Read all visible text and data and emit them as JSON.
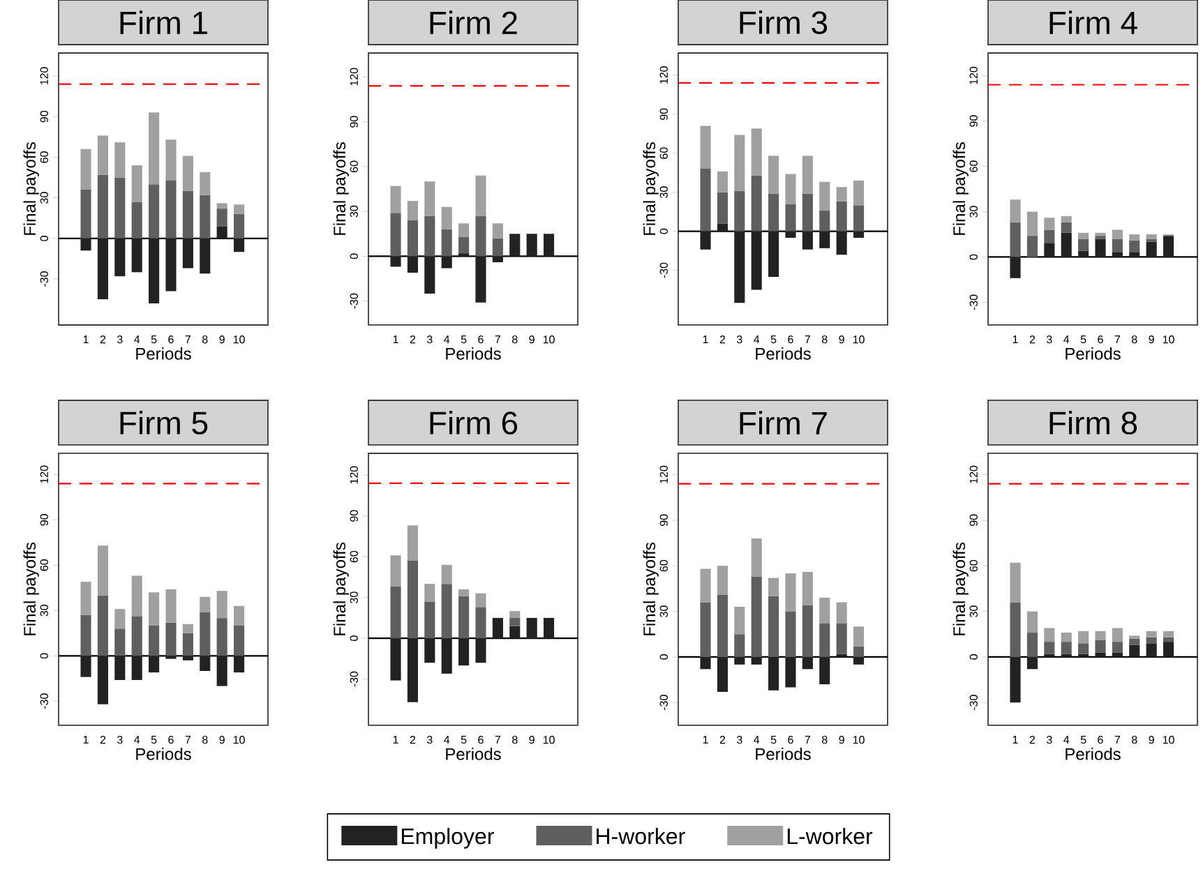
{
  "chart_data": [
    {
      "type": "bar",
      "title": "Firm 1",
      "xlabel": "Periods",
      "ylabel": "Final payoffs",
      "stacked": true,
      "legend": "bottom",
      "categories": [
        "1",
        "2",
        "3",
        "4",
        "5",
        "6",
        "7",
        "8",
        "9",
        "10"
      ],
      "ylim": [
        -64,
        137
      ],
      "yticks": [
        -30,
        0,
        30,
        60,
        90,
        120
      ],
      "ref_lines": [
        {
          "axis": "y",
          "value": 114,
          "color": "#ff0000",
          "line_style": "dashed"
        },
        {
          "axis": "y",
          "value": 0,
          "color": "#000000",
          "line_style": "solid"
        }
      ],
      "series": [
        {
          "name": "Employer",
          "color": "#222222",
          "values": [
            -9,
            -45,
            -28,
            -25,
            -48,
            -39,
            -22,
            -26,
            9,
            -10
          ]
        },
        {
          "name": "H-worker",
          "color": "#5f5f5f",
          "values": [
            36,
            47,
            45,
            27,
            40,
            43,
            35,
            32,
            13,
            18
          ]
        },
        {
          "name": "L-worker",
          "color": "#a0a0a0",
          "values": [
            30,
            29,
            26,
            27,
            53,
            30,
            26,
            17,
            4,
            7
          ]
        }
      ]
    },
    {
      "type": "bar",
      "title": "Firm 2",
      "xlabel": "Periods",
      "ylabel": "Final payoffs",
      "stacked": true,
      "categories": [
        "1",
        "2",
        "3",
        "4",
        "5",
        "6",
        "7",
        "8",
        "9",
        "10"
      ],
      "ylim": [
        -46,
        136
      ],
      "yticks": [
        -30,
        0,
        30,
        60,
        90,
        120
      ],
      "ref_lines": [
        {
          "axis": "y",
          "value": 114,
          "color": "#ff0000",
          "line_style": "dashed"
        },
        {
          "axis": "y",
          "value": 0,
          "color": "#000000",
          "line_style": "solid"
        }
      ],
      "series": [
        {
          "color": "#222222",
          "values": [
            -7,
            -11,
            -25,
            -8,
            2,
            -31,
            -4,
            15,
            15,
            15
          ]
        },
        {
          "color": "#5f5f5f",
          "values": [
            29,
            24,
            27,
            18,
            11,
            27,
            12,
            0,
            0,
            0
          ]
        },
        {
          "color": "#a0a0a0",
          "values": [
            18,
            13,
            23,
            15,
            9,
            27,
            10,
            0,
            0,
            0
          ]
        }
      ]
    },
    {
      "type": "bar",
      "title": "Firm 3",
      "xlabel": "Periods",
      "ylabel": "Final payoffs",
      "stacked": true,
      "categories": [
        "1",
        "2",
        "3",
        "4",
        "5",
        "6",
        "7",
        "8",
        "9",
        "10"
      ],
      "ylim": [
        -72,
        137
      ],
      "yticks": [
        -30,
        0,
        30,
        60,
        90,
        120
      ],
      "ref_lines": [
        {
          "axis": "y",
          "value": 114,
          "color": "#ff0000",
          "line_style": "dashed"
        },
        {
          "axis": "y",
          "value": 0,
          "color": "#000000",
          "line_style": "solid"
        }
      ],
      "series": [
        {
          "color": "#222222",
          "values": [
            -14,
            6,
            -55,
            -45,
            -35,
            -5,
            -14,
            -13,
            -18,
            -5
          ]
        },
        {
          "color": "#5f5f5f",
          "values": [
            48,
            24,
            31,
            43,
            29,
            21,
            29,
            16,
            23,
            20
          ]
        },
        {
          "color": "#a0a0a0",
          "values": [
            33,
            16,
            43,
            36,
            29,
            23,
            29,
            22,
            11,
            19
          ]
        }
      ]
    },
    {
      "type": "bar",
      "title": "Firm 4",
      "xlabel": "Periods",
      "ylabel": "Final payoffs",
      "stacked": true,
      "categories": [
        "1",
        "2",
        "3",
        "4",
        "5",
        "6",
        "7",
        "8",
        "9",
        "10"
      ],
      "ylim": [
        -45,
        135
      ],
      "yticks": [
        -30,
        0,
        30,
        60,
        90,
        120
      ],
      "ref_lines": [
        {
          "axis": "y",
          "value": 114,
          "color": "#ff0000",
          "line_style": "dashed"
        },
        {
          "axis": "y",
          "value": 0,
          "color": "#000000",
          "line_style": "solid"
        }
      ],
      "series": [
        {
          "color": "#222222",
          "values": [
            -14,
            0,
            9,
            16,
            4,
            12,
            3,
            3,
            10,
            14
          ]
        },
        {
          "color": "#5f5f5f",
          "values": [
            23,
            14,
            9,
            7,
            8,
            2,
            9,
            8,
            2,
            0
          ]
        },
        {
          "color": "#a0a0a0",
          "values": [
            15,
            16,
            8,
            4,
            4,
            2,
            6,
            4,
            3,
            1
          ]
        }
      ]
    },
    {
      "type": "bar",
      "title": "Firm 5",
      "xlabel": "Periods",
      "ylabel": "Final payoffs",
      "stacked": true,
      "categories": [
        "1",
        "2",
        "3",
        "4",
        "5",
        "6",
        "7",
        "8",
        "9",
        "10"
      ],
      "ylim": [
        -46,
        134
      ],
      "yticks": [
        -30,
        0,
        30,
        60,
        90,
        120
      ],
      "ref_lines": [
        {
          "axis": "y",
          "value": 114,
          "color": "#ff0000",
          "line_style": "dashed"
        },
        {
          "axis": "y",
          "value": 0,
          "color": "#000000",
          "line_style": "solid"
        }
      ],
      "series": [
        {
          "color": "#222222",
          "values": [
            -14,
            -32,
            -16,
            -16,
            -11,
            -2,
            -3,
            -10,
            -20,
            -11
          ]
        },
        {
          "color": "#5f5f5f",
          "values": [
            27,
            40,
            18,
            26,
            20,
            22,
            15,
            29,
            25,
            20
          ]
        },
        {
          "color": "#a0a0a0",
          "values": [
            22,
            33,
            13,
            27,
            22,
            22,
            6,
            10,
            18,
            13
          ]
        }
      ]
    },
    {
      "type": "bar",
      "title": "Firm 6",
      "xlabel": "Periods",
      "ylabel": "Final payoffs",
      "stacked": true,
      "categories": [
        "1",
        "2",
        "3",
        "4",
        "5",
        "6",
        "7",
        "8",
        "9",
        "10"
      ],
      "ylim": [
        -64,
        136
      ],
      "yticks": [
        -30,
        0,
        30,
        60,
        90,
        120
      ],
      "ref_lines": [
        {
          "axis": "y",
          "value": 114,
          "color": "#ff0000",
          "line_style": "dashed"
        },
        {
          "axis": "y",
          "value": 0,
          "color": "#000000",
          "line_style": "solid"
        }
      ],
      "series": [
        {
          "color": "#222222",
          "values": [
            -31,
            -47,
            -18,
            -26,
            -20,
            -18,
            15,
            9,
            15,
            15
          ]
        },
        {
          "color": "#5f5f5f",
          "values": [
            38,
            57,
            27,
            40,
            31,
            23,
            0,
            6,
            0,
            0
          ]
        },
        {
          "color": "#a0a0a0",
          "values": [
            23,
            26,
            13,
            14,
            5,
            10,
            0,
            5,
            0,
            0
          ]
        }
      ]
    },
    {
      "type": "bar",
      "title": "Firm 7",
      "xlabel": "Periods",
      "ylabel": "Final payoffs",
      "stacked": true,
      "categories": [
        "1",
        "2",
        "3",
        "4",
        "5",
        "6",
        "7",
        "8",
        "9",
        "10"
      ],
      "ylim": [
        -45,
        134
      ],
      "yticks": [
        -30,
        0,
        30,
        60,
        90,
        120
      ],
      "ref_lines": [
        {
          "axis": "y",
          "value": 114,
          "color": "#ff0000",
          "line_style": "dashed"
        },
        {
          "axis": "y",
          "value": 0,
          "color": "#000000",
          "line_style": "solid"
        }
      ],
      "series": [
        {
          "color": "#222222",
          "values": [
            -8,
            -23,
            -5,
            -5,
            -22,
            -20,
            -8,
            -18,
            2,
            -5
          ]
        },
        {
          "color": "#5f5f5f",
          "values": [
            36,
            41,
            15,
            53,
            40,
            30,
            34,
            22,
            20,
            7
          ]
        },
        {
          "color": "#a0a0a0",
          "values": [
            22,
            19,
            18,
            25,
            12,
            25,
            22,
            17,
            14,
            13
          ]
        }
      ]
    },
    {
      "type": "bar",
      "title": "Firm 8",
      "xlabel": "Periods",
      "ylabel": "Final payoffs",
      "stacked": true,
      "categories": [
        "1",
        "2",
        "3",
        "4",
        "5",
        "6",
        "7",
        "8",
        "9",
        "10"
      ],
      "ylim": [
        -45,
        134
      ],
      "yticks": [
        -30,
        0,
        30,
        60,
        90,
        120
      ],
      "ref_lines": [
        {
          "axis": "y",
          "value": 114,
          "color": "#ff0000",
          "line_style": "dashed"
        },
        {
          "axis": "y",
          "value": 0,
          "color": "#000000",
          "line_style": "solid"
        }
      ],
      "series": [
        {
          "color": "#222222",
          "values": [
            -30,
            -8,
            2,
            2,
            2,
            3,
            3,
            8,
            9,
            10
          ]
        },
        {
          "color": "#5f5f5f",
          "values": [
            36,
            16,
            8,
            8,
            7,
            8,
            7,
            4,
            4,
            3
          ]
        },
        {
          "color": "#a0a0a0",
          "values": [
            26,
            14,
            9,
            6,
            8,
            6,
            9,
            2,
            4,
            4
          ]
        }
      ]
    }
  ]
}
